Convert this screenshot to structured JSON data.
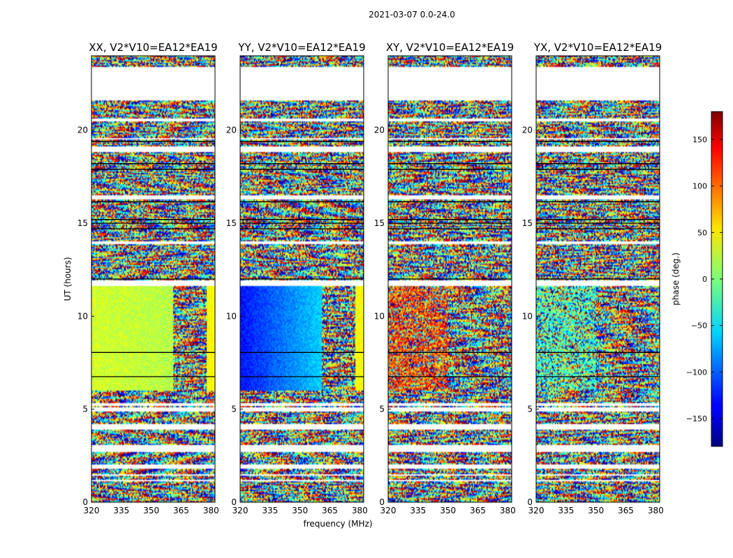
{
  "figure": {
    "suptitle": "2021-03-07 0.0-24.0",
    "xlabel": "frequency (MHz)",
    "ylabel": "UT (hours)"
  },
  "chart_data": [
    {
      "type": "heatmap",
      "title": "XX, V2*V10=EA12*EA19",
      "xlim": [
        320,
        382
      ],
      "ylim": [
        0,
        24
      ],
      "xticks": [
        "320",
        "335",
        "350",
        "365",
        "380"
      ],
      "yticks": [
        "0",
        "5",
        "10",
        "15",
        "20"
      ],
      "smooth_region": {
        "ut": [
          6.0,
          11.6
        ],
        "freq": [
          320,
          361
        ],
        "phase_start": 30,
        "phase_end": 20
      },
      "noise_base_phase": 0
    },
    {
      "type": "heatmap",
      "title": "YY, V2*V10=EA12*EA19",
      "xlim": [
        320,
        382
      ],
      "ylim": [
        0,
        24
      ],
      "xticks": [
        "320",
        "335",
        "350",
        "365",
        "380"
      ],
      "yticks": [
        "0",
        "5",
        "10",
        "15",
        "20"
      ],
      "smooth_region": {
        "ut": [
          6.0,
          11.6
        ],
        "freq": [
          320,
          361
        ],
        "phase_start": -130,
        "phase_end": -60
      },
      "noise_base_phase": 0
    },
    {
      "type": "heatmap",
      "title": "XY, V2*V10=EA12*EA19",
      "xlim": [
        320,
        382
      ],
      "ylim": [
        0,
        24
      ],
      "xticks": [
        "320",
        "335",
        "350",
        "365",
        "380"
      ],
      "yticks": [
        "0",
        "5",
        "10",
        "15",
        "20"
      ],
      "smooth_region": null,
      "noise_base_phase": 110
    },
    {
      "type": "heatmap",
      "title": "YX, V2*V10=EA12*EA19",
      "xlim": [
        320,
        382
      ],
      "ylim": [
        0,
        24
      ],
      "xticks": [
        "320",
        "335",
        "350",
        "365",
        "380"
      ],
      "yticks": [
        "0",
        "5",
        "10",
        "15",
        "20"
      ],
      "smooth_region": null,
      "noise_base_phase": -20
    }
  ],
  "colorbar": {
    "label": "phase (deg.)",
    "range": [
      -180,
      180
    ],
    "ticks": [
      "150",
      "100",
      "50",
      "0",
      "−50",
      "−100",
      "−150"
    ],
    "tick_values": [
      150,
      100,
      50,
      0,
      -50,
      -100,
      -150
    ],
    "colormap": "jet"
  },
  "flagged_ut_ranges": [
    [
      1.1,
      1.2
    ],
    [
      1.4,
      1.5
    ],
    [
      1.8,
      2.0
    ],
    [
      2.7,
      3.1
    ],
    [
      3.9,
      4.2
    ],
    [
      4.9,
      5.1
    ],
    [
      5.2,
      5.3
    ],
    [
      11.6,
      11.9
    ],
    [
      13.9,
      14.0
    ],
    [
      16.3,
      16.5
    ],
    [
      18.8,
      19.1
    ],
    [
      19.5,
      19.6
    ],
    [
      20.5,
      20.6
    ],
    [
      21.6,
      23.4
    ]
  ],
  "dark_lines_ut": [
    6.75,
    8.05,
    12.0,
    14.7,
    15.0,
    15.2,
    16.15,
    17.9,
    18.2,
    19.4
  ]
}
